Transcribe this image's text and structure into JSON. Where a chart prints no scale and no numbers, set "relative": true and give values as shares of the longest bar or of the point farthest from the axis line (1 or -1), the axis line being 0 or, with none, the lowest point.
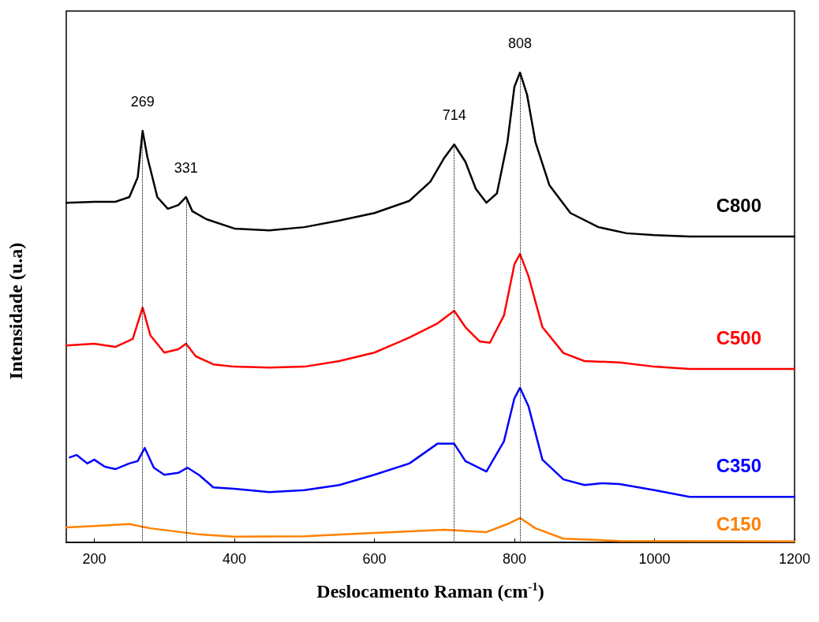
{
  "chart_data": {
    "type": "line",
    "relative": true,
    "xlabel": "Deslocamento Raman (cm$^{-1}$)",
    "ylabel": "Intensidade (u.a)",
    "xlim": [
      160,
      1200
    ],
    "xticks": [
      200,
      400,
      600,
      800,
      1000,
      1200
    ],
    "grid": false,
    "legend": false,
    "marker": "none",
    "line_style": "solid",
    "ref_lines": [
      {
        "axis": "x",
        "value": 269,
        "label": "269",
        "line_style": "dotted"
      },
      {
        "axis": "x",
        "value": 331,
        "label": "331",
        "line_style": "dotted"
      },
      {
        "axis": "x",
        "value": 714,
        "label": "714",
        "line_style": "dotted"
      },
      {
        "axis": "x",
        "value": 808,
        "label": "808",
        "line_style": "dotted"
      }
    ],
    "series": [
      {
        "name": "C800",
        "color": "#000000",
        "x": [
          160,
          200,
          230,
          250,
          262,
          269,
          276,
          290,
          305,
          320,
          331,
          340,
          360,
          400,
          450,
          500,
          550,
          600,
          650,
          680,
          700,
          714,
          730,
          745,
          760,
          775,
          790,
          800,
          808,
          818,
          830,
          850,
          880,
          920,
          960,
          1000,
          1050,
          1200
        ],
        "values": [
          0.723,
          0.725,
          0.725,
          0.735,
          0.777,
          0.876,
          0.819,
          0.735,
          0.71,
          0.718,
          0.735,
          0.705,
          0.688,
          0.668,
          0.664,
          0.671,
          0.685,
          0.701,
          0.727,
          0.768,
          0.819,
          0.847,
          0.81,
          0.752,
          0.723,
          0.743,
          0.852,
          0.97,
          1,
          0.953,
          0.852,
          0.76,
          0.701,
          0.671,
          0.658,
          0.654,
          0.651,
          0.651
        ]
      },
      {
        "name": "C500",
        "color": "#ff0000",
        "x": [
          160,
          200,
          230,
          255,
          269,
          280,
          300,
          320,
          331,
          345,
          370,
          400,
          450,
          500,
          550,
          600,
          650,
          690,
          714,
          730,
          750,
          765,
          785,
          800,
          808,
          820,
          840,
          870,
          900,
          950,
          1000,
          1050,
          1200
        ],
        "values": [
          0.419,
          0.423,
          0.416,
          0.433,
          0.5,
          0.441,
          0.404,
          0.411,
          0.423,
          0.396,
          0.379,
          0.374,
          0.372,
          0.374,
          0.386,
          0.404,
          0.436,
          0.466,
          0.493,
          0.458,
          0.428,
          0.425,
          0.483,
          0.592,
          0.614,
          0.567,
          0.458,
          0.403,
          0.386,
          0.383,
          0.374,
          0.369,
          0.369
        ]
      },
      {
        "name": "C350",
        "color": "#0000ff",
        "x": [
          165,
          175,
          190,
          200,
          215,
          230,
          250,
          262,
          272,
          285,
          300,
          320,
          333,
          350,
          370,
          400,
          450,
          500,
          550,
          600,
          650,
          690,
          714,
          730,
          760,
          785,
          800,
          808,
          820,
          840,
          870,
          900,
          925,
          950,
          1000,
          1050,
          1200
        ],
        "values": [
          0.181,
          0.186,
          0.168,
          0.176,
          0.161,
          0.156,
          0.168,
          0.173,
          0.201,
          0.159,
          0.144,
          0.148,
          0.159,
          0.143,
          0.117,
          0.114,
          0.107,
          0.111,
          0.122,
          0.144,
          0.168,
          0.21,
          0.21,
          0.173,
          0.151,
          0.215,
          0.307,
          0.329,
          0.29,
          0.176,
          0.134,
          0.122,
          0.126,
          0.124,
          0.111,
          0.097,
          0.097
        ]
      },
      {
        "name": "C150",
        "color": "#ff8000",
        "x": [
          160,
          200,
          250,
          280,
          350,
          400,
          500,
          600,
          700,
          760,
          790,
          808,
          830,
          870,
          950,
          1200
        ],
        "values": [
          0.032,
          0.035,
          0.039,
          0.03,
          0.017,
          0.012,
          0.013,
          0.02,
          0.027,
          0.022,
          0.039,
          0.052,
          0.03,
          0.008,
          0.003,
          0.002
        ]
      }
    ]
  }
}
